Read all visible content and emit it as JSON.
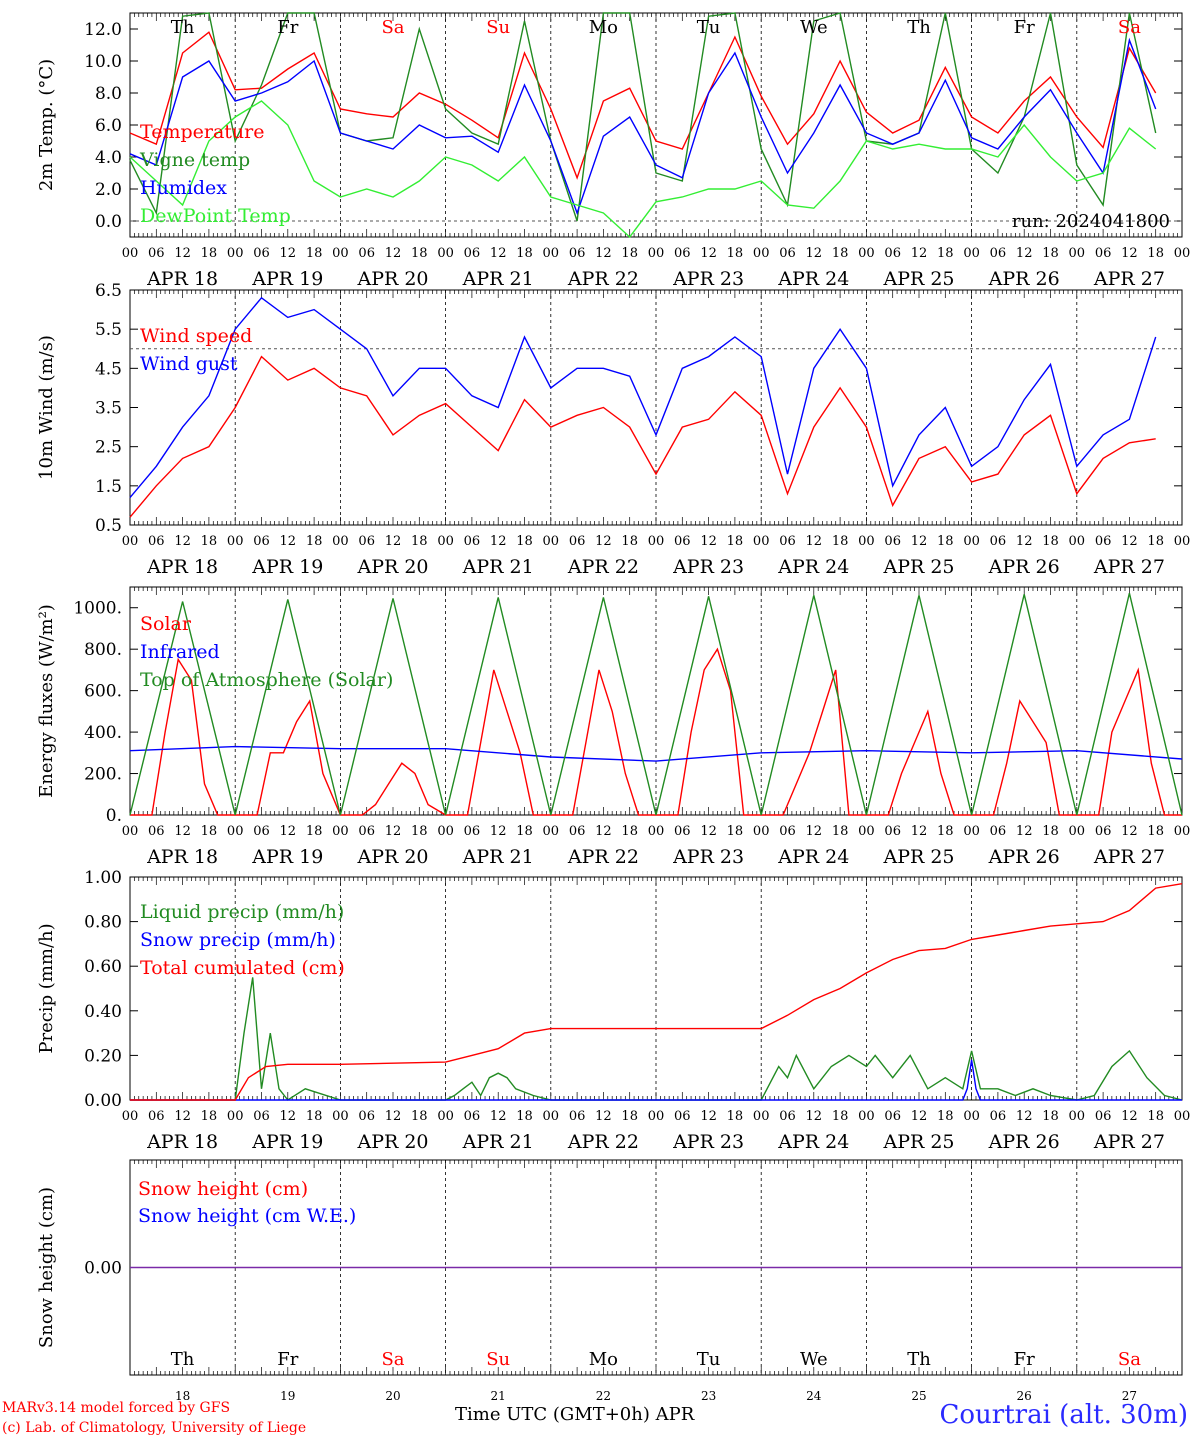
{
  "chart_data": [
    {
      "type": "line",
      "id": "temp",
      "ylabel": "2m Temp. (°C)",
      "ylim": [
        -1.0,
        13.0
      ],
      "yticks": [
        "0.0",
        "2.0",
        "4.0",
        "6.0",
        "8.0",
        "10.0",
        "12.0"
      ],
      "ytick_values": [
        0,
        2,
        4,
        6,
        8,
        10,
        12
      ],
      "legend": [
        "Temperature",
        "Vigne temp",
        "Humidex",
        "DewPoint Temp"
      ],
      "annotation": "run: 2024041800",
      "series": [
        {
          "name": "Temperature",
          "color": "#ff0000",
          "x": [
            0,
            6,
            12,
            18,
            24,
            30,
            36,
            42,
            48,
            54,
            60,
            66,
            72,
            78,
            84,
            90,
            96,
            102,
            108,
            114,
            120,
            126,
            132,
            138,
            144,
            150,
            156,
            162,
            168,
            174,
            180,
            186,
            192,
            198,
            204,
            210,
            216,
            222,
            228,
            234
          ],
          "y": [
            5.5,
            4.8,
            10.5,
            11.8,
            8.2,
            8.3,
            9.5,
            10.5,
            7.0,
            6.7,
            6.5,
            8.0,
            7.3,
            6.3,
            5.2,
            10.5,
            7.0,
            2.7,
            7.5,
            8.3,
            5.0,
            4.5,
            8.0,
            11.5,
            7.8,
            4.8,
            6.7,
            10.0,
            6.8,
            5.5,
            6.3,
            9.6,
            6.5,
            5.5,
            7.5,
            9.0,
            6.5,
            4.6,
            10.8,
            8.0
          ]
        },
        {
          "name": "Vigne temp",
          "color": "#228b22",
          "x": [
            0,
            6,
            12,
            18,
            24,
            30,
            36,
            42,
            48,
            54,
            60,
            66,
            72,
            78,
            84,
            90,
            96,
            102,
            108,
            114,
            120,
            126,
            132,
            138,
            144,
            150,
            156,
            162,
            168,
            174,
            180,
            186,
            192,
            198,
            204,
            210,
            216,
            222,
            228,
            234
          ],
          "y": [
            3.8,
            0.5,
            12.8,
            13.0,
            5.0,
            8.5,
            13.0,
            13.0,
            5.5,
            5.0,
            5.2,
            12.0,
            7.0,
            5.5,
            4.8,
            12.5,
            5.0,
            0.0,
            13.0,
            13.0,
            3.0,
            2.5,
            12.8,
            13.0,
            4.5,
            1.0,
            12.5,
            13.0,
            5.0,
            4.8,
            5.5,
            13.0,
            4.5,
            3.0,
            6.5,
            13.0,
            3.5,
            1.0,
            13.0,
            5.5
          ]
        },
        {
          "name": "Humidex",
          "color": "#0000ff",
          "x": [
            0,
            6,
            12,
            18,
            24,
            30,
            36,
            42,
            48,
            54,
            60,
            66,
            72,
            78,
            84,
            90,
            96,
            102,
            108,
            114,
            120,
            126,
            132,
            138,
            144,
            150,
            156,
            162,
            168,
            174,
            180,
            186,
            192,
            198,
            204,
            210,
            216,
            222,
            228,
            234
          ],
          "y": [
            4.2,
            3.5,
            9.0,
            10.0,
            7.5,
            8.0,
            8.7,
            10.0,
            5.5,
            5.0,
            4.5,
            6.0,
            5.2,
            5.3,
            4.3,
            8.5,
            5.0,
            0.5,
            5.3,
            6.5,
            3.5,
            2.7,
            8.0,
            10.5,
            6.5,
            3.0,
            5.5,
            8.5,
            5.5,
            4.8,
            5.5,
            8.8,
            5.2,
            4.5,
            6.5,
            8.2,
            5.5,
            3.0,
            11.3,
            7.0
          ]
        },
        {
          "name": "DewPoint Temp",
          "color": "#33ee33",
          "x": [
            0,
            6,
            12,
            18,
            24,
            30,
            36,
            42,
            48,
            54,
            60,
            66,
            72,
            78,
            84,
            90,
            96,
            102,
            108,
            114,
            120,
            126,
            132,
            138,
            144,
            150,
            156,
            162,
            168,
            174,
            180,
            186,
            192,
            198,
            204,
            210,
            216,
            222,
            228,
            234
          ],
          "y": [
            4.0,
            2.5,
            1.0,
            5.0,
            6.5,
            7.5,
            6.0,
            2.5,
            1.5,
            2.0,
            1.5,
            2.5,
            4.0,
            3.5,
            2.5,
            4.0,
            1.5,
            1.0,
            0.5,
            -1.0,
            1.2,
            1.5,
            2.0,
            2.0,
            2.5,
            1.0,
            0.8,
            2.5,
            5.0,
            4.5,
            4.8,
            4.5,
            4.5,
            4.0,
            6.0,
            4.0,
            2.5,
            3.0,
            5.8,
            4.5
          ]
        }
      ]
    },
    {
      "type": "line",
      "id": "wind",
      "ylabel": "10m Wind (m/s)",
      "ylim": [
        0.5,
        6.5
      ],
      "yticks": [
        "0.5",
        "1.5",
        "2.5",
        "3.5",
        "4.5",
        "5.5",
        "6.5"
      ],
      "ytick_values": [
        0.5,
        1.5,
        2.5,
        3.5,
        4.5,
        5.5,
        6.5
      ],
      "refline": 5.0,
      "legend": [
        "Wind speed",
        "Wind gust"
      ],
      "series": [
        {
          "name": "Wind speed",
          "color": "#ff0000",
          "x": [
            0,
            6,
            12,
            18,
            24,
            30,
            36,
            42,
            48,
            54,
            60,
            66,
            72,
            78,
            84,
            90,
            96,
            102,
            108,
            114,
            120,
            126,
            132,
            138,
            144,
            150,
            156,
            162,
            168,
            174,
            180,
            186,
            192,
            198,
            204,
            210,
            216,
            222,
            228,
            234
          ],
          "y": [
            0.7,
            1.5,
            2.2,
            2.5,
            3.5,
            4.8,
            4.2,
            4.5,
            4.0,
            3.8,
            2.8,
            3.3,
            3.6,
            3.0,
            2.4,
            3.7,
            3.0,
            3.3,
            3.5,
            3.0,
            1.8,
            3.0,
            3.2,
            3.9,
            3.3,
            1.3,
            3.0,
            4.0,
            3.0,
            1.0,
            2.2,
            2.5,
            1.6,
            1.8,
            2.8,
            3.3,
            1.3,
            2.2,
            2.6,
            2.7
          ]
        },
        {
          "name": "Wind gust",
          "color": "#0000ff",
          "x": [
            0,
            6,
            12,
            18,
            24,
            30,
            36,
            42,
            48,
            54,
            60,
            66,
            72,
            78,
            84,
            90,
            96,
            102,
            108,
            114,
            120,
            126,
            132,
            138,
            144,
            150,
            156,
            162,
            168,
            174,
            180,
            186,
            192,
            198,
            204,
            210,
            216,
            222,
            228,
            234
          ],
          "y": [
            1.2,
            2.0,
            3.0,
            3.8,
            5.5,
            6.3,
            5.8,
            6.0,
            5.5,
            5.0,
            3.8,
            4.5,
            4.5,
            3.8,
            3.5,
            5.3,
            4.0,
            4.5,
            4.5,
            4.3,
            2.8,
            4.5,
            4.8,
            5.3,
            4.8,
            1.8,
            4.5,
            5.5,
            4.5,
            1.5,
            2.8,
            3.5,
            2.0,
            2.5,
            3.7,
            4.6,
            2.0,
            2.8,
            3.2,
            5.3
          ]
        }
      ]
    },
    {
      "type": "line",
      "id": "energy",
      "ylabel": "Energy fluxes (W/m²)",
      "ylim": [
        0,
        1100
      ],
      "yticks": [
        "0.",
        "200.",
        "400.",
        "600.",
        "800.",
        "1000."
      ],
      "ytick_values": [
        0,
        200,
        400,
        600,
        800,
        1000
      ],
      "legend": [
        "Solar",
        "Infrared",
        "Top of Atmosphere (Solar)"
      ],
      "series": [
        {
          "name": "Solar",
          "color": "#ff0000",
          "x": [
            0,
            5,
            8,
            11,
            14,
            17,
            20,
            24,
            29,
            32,
            35,
            38,
            41,
            44,
            48,
            53,
            56,
            59,
            62,
            65,
            68,
            72,
            77,
            80,
            83,
            86,
            89,
            92,
            96,
            101,
            104,
            107,
            110,
            113,
            116,
            120,
            125,
            128,
            131,
            134,
            137,
            140,
            144,
            149,
            152,
            155,
            158,
            161,
            164,
            168,
            173,
            176,
            179,
            182,
            185,
            188,
            192,
            197,
            200,
            203,
            206,
            209,
            212,
            216,
            221,
            224,
            227,
            230,
            233,
            236,
            240
          ],
          "y": [
            0,
            0,
            400,
            750,
            650,
            150,
            0,
            0,
            0,
            300,
            300,
            450,
            550,
            200,
            0,
            0,
            50,
            150,
            250,
            200,
            50,
            0,
            0,
            350,
            700,
            500,
            300,
            0,
            0,
            0,
            350,
            700,
            500,
            200,
            0,
            0,
            0,
            400,
            700,
            800,
            600,
            0,
            0,
            0,
            150,
            300,
            500,
            700,
            0,
            0,
            0,
            200,
            350,
            500,
            200,
            0,
            0,
            0,
            250,
            550,
            450,
            350,
            0,
            0,
            0,
            400,
            550,
            700,
            250,
            0,
            0
          ]
        },
        {
          "name": "Infrared",
          "color": "#0000ff",
          "x": [
            0,
            24,
            48,
            72,
            96,
            120,
            144,
            168,
            192,
            216,
            240
          ],
          "y": [
            310,
            330,
            320,
            320,
            280,
            260,
            300,
            310,
            300,
            310,
            270
          ]
        },
        {
          "name": "Top of Atmosphere (Solar)",
          "color": "#228b22",
          "x": [
            0,
            12,
            24,
            36,
            48,
            60,
            72,
            84,
            96,
            108,
            120,
            132,
            144,
            156,
            168,
            180,
            192,
            204,
            216,
            228,
            240
          ],
          "y": [
            0,
            1030,
            0,
            1040,
            0,
            1045,
            0,
            1050,
            0,
            1050,
            0,
            1055,
            0,
            1060,
            0,
            1060,
            0,
            1065,
            0,
            1070,
            0
          ]
        }
      ]
    },
    {
      "type": "line",
      "id": "precip",
      "ylabel": "Precip (mm/h)",
      "ylim": [
        0,
        1.0
      ],
      "yticks": [
        "0.00",
        "0.20",
        "0.40",
        "0.60",
        "0.80",
        "1.00"
      ],
      "ytick_values": [
        0,
        0.2,
        0.4,
        0.6,
        0.8,
        1.0
      ],
      "legend": [
        "Liquid precip (mm/h)",
        "Snow precip (mm/h)",
        "Total cumulated (cm)"
      ],
      "series": [
        {
          "name": "Liquid precip (mm/h)",
          "color": "#228b22",
          "x": [
            0,
            24,
            26,
            28,
            30,
            32,
            34,
            36,
            40,
            48,
            72,
            74,
            76,
            78,
            80,
            82,
            84,
            86,
            88,
            92,
            96,
            144,
            148,
            150,
            152,
            156,
            160,
            164,
            168,
            170,
            174,
            178,
            182,
            186,
            190,
            192,
            194,
            198,
            202,
            206,
            210,
            216,
            220,
            224,
            228,
            232,
            236,
            240
          ],
          "y": [
            0,
            0,
            0.3,
            0.55,
            0.05,
            0.3,
            0.05,
            0,
            0.05,
            0,
            0,
            0.02,
            0.05,
            0.08,
            0.02,
            0.1,
            0.12,
            0.1,
            0.05,
            0.02,
            0,
            0,
            0.15,
            0.1,
            0.2,
            0.05,
            0.15,
            0.2,
            0.15,
            0.2,
            0.1,
            0.2,
            0.05,
            0.1,
            0.05,
            0.22,
            0.05,
            0.05,
            0.02,
            0.05,
            0.02,
            0,
            0.02,
            0.15,
            0.22,
            0.1,
            0.02,
            0
          ]
        },
        {
          "name": "Snow precip (mm/h)",
          "color": "#0000ff",
          "x": [
            0,
            190,
            191,
            192,
            193,
            194,
            240
          ],
          "y": [
            0,
            0,
            0.05,
            0.18,
            0.05,
            0,
            0
          ]
        },
        {
          "name": "Total cumulated (cm)",
          "color": "#ff0000",
          "x": [
            0,
            24,
            27,
            31,
            36,
            48,
            72,
            78,
            84,
            90,
            96,
            120,
            144,
            150,
            156,
            162,
            168,
            174,
            180,
            186,
            192,
            198,
            204,
            210,
            216,
            222,
            228,
            234,
            240
          ],
          "y": [
            0,
            0,
            0.1,
            0.15,
            0.16,
            0.16,
            0.17,
            0.2,
            0.23,
            0.3,
            0.32,
            0.32,
            0.32,
            0.38,
            0.45,
            0.5,
            0.57,
            0.63,
            0.67,
            0.68,
            0.72,
            0.74,
            0.76,
            0.78,
            0.79,
            0.8,
            0.85,
            0.95,
            0.97
          ]
        }
      ]
    },
    {
      "type": "line",
      "id": "snow",
      "ylabel": "Snow height (cm)",
      "ylim": [
        -1,
        1
      ],
      "yticks": [
        "0.00"
      ],
      "ytick_values": [
        0
      ],
      "legend": [
        "Snow height (cm)",
        "Snow height (cm W.E.)"
      ],
      "series": [
        {
          "name": "Snow height (cm W.E.)",
          "color": "#7a2aa8",
          "x": [
            0,
            240
          ],
          "y": [
            0,
            0
          ]
        }
      ]
    }
  ],
  "time_axis": {
    "hour_labels": [
      "00",
      "06",
      "12",
      "18"
    ],
    "end_label": "00",
    "date_labels": [
      "APR 18",
      "APR 19",
      "APR 20",
      "APR 21",
      "APR 22",
      "APR 23",
      "APR 24",
      "APR 25",
      "APR 26",
      "APR 27"
    ],
    "weekdays": [
      "Th",
      "Fr",
      "Sa",
      "Su",
      "Mo",
      "Tu",
      "We",
      "Th",
      "Fr",
      "Sa"
    ],
    "weekday_colors": [
      "#000000",
      "#000000",
      "#ff0000",
      "#ff0000",
      "#000000",
      "#000000",
      "#000000",
      "#000000",
      "#000000",
      "#ff0000"
    ],
    "day_numbers": [
      "18",
      "19",
      "20",
      "21",
      "22",
      "23",
      "24",
      "25",
      "26",
      "27"
    ]
  },
  "footer": {
    "credit1": "MARv3.14 model forced by GFS",
    "credit2": "(c) Lab. of Climatology, University of Liege",
    "xtitle": "Time UTC (GMT+0h) APR",
    "station": "Courtrai (alt. 30m)"
  }
}
